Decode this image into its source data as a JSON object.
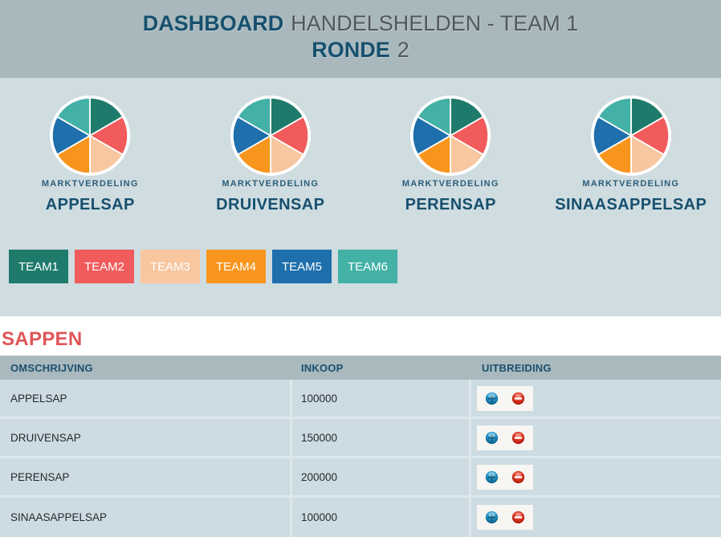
{
  "header": {
    "title_bold": "DASHBOARD",
    "title_rest": "HANDELSHELDEN - TEAM 1",
    "subtitle_bold": "RONDE",
    "subtitle_rest": "2"
  },
  "chart_data": [
    {
      "type": "pie",
      "title": "APPELSAP",
      "label": "MARKTVERDELING",
      "categories": [
        "TEAM1",
        "TEAM2",
        "TEAM3",
        "TEAM4",
        "TEAM5",
        "TEAM6"
      ],
      "values": [
        16.67,
        16.67,
        16.67,
        16.67,
        16.67,
        16.67
      ],
      "colors": [
        "#1E7B6C",
        "#F15B5B",
        "#F8C7A0",
        "#F8951D",
        "#1E6FAC",
        "#43B1A6"
      ],
      "legend": "none",
      "start_angle_deg": -90,
      "direction": "clockwise"
    },
    {
      "type": "pie",
      "title": "DRUIVENSAP",
      "label": "MARKTVERDELING",
      "categories": [
        "TEAM1",
        "TEAM2",
        "TEAM3",
        "TEAM4",
        "TEAM5",
        "TEAM6"
      ],
      "values": [
        16.67,
        16.67,
        16.67,
        16.67,
        16.67,
        16.67
      ],
      "colors": [
        "#1E7B6C",
        "#F15B5B",
        "#F8C7A0",
        "#F8951D",
        "#1E6FAC",
        "#43B1A6"
      ],
      "legend": "none",
      "start_angle_deg": -90,
      "direction": "clockwise"
    },
    {
      "type": "pie",
      "title": "PERENSAP",
      "label": "MARKTVERDELING",
      "categories": [
        "TEAM1",
        "TEAM2",
        "TEAM3",
        "TEAM4",
        "TEAM5",
        "TEAM6"
      ],
      "values": [
        16.67,
        16.67,
        16.67,
        16.67,
        16.67,
        16.67
      ],
      "colors": [
        "#1E7B6C",
        "#F15B5B",
        "#F8C7A0",
        "#F8951D",
        "#1E6FAC",
        "#43B1A6"
      ],
      "legend": "none",
      "start_angle_deg": -90,
      "direction": "clockwise"
    },
    {
      "type": "pie",
      "title": "SINAASAPPELSAP",
      "label": "MARKTVERDELING",
      "categories": [
        "TEAM1",
        "TEAM2",
        "TEAM3",
        "TEAM4",
        "TEAM5",
        "TEAM6"
      ],
      "values": [
        16.67,
        16.67,
        16.67,
        16.67,
        16.67,
        16.67
      ],
      "colors": [
        "#1E7B6C",
        "#F15B5B",
        "#F8C7A0",
        "#F8951D",
        "#1E6FAC",
        "#43B1A6"
      ],
      "legend": "none",
      "start_angle_deg": -90,
      "direction": "clockwise"
    }
  ],
  "teams": [
    {
      "label": "TEAM1",
      "color": "#1E7B6C"
    },
    {
      "label": "TEAM2",
      "color": "#F15B5B"
    },
    {
      "label": "TEAM3",
      "color": "#F8C7A0"
    },
    {
      "label": "TEAM4",
      "color": "#F8951D"
    },
    {
      "label": "TEAM5",
      "color": "#1E6FAC"
    },
    {
      "label": "TEAM6",
      "color": "#43B1A6"
    }
  ],
  "sappen": {
    "title": "SAPPEN",
    "columns": [
      "OMSCHRIJVING",
      "INKOOP",
      "UITBREIDING"
    ],
    "rows": [
      {
        "omschrijving": "APPELSAP",
        "inkoop": "100000"
      },
      {
        "omschrijving": "DRUIVENSAP",
        "inkoop": "150000"
      },
      {
        "omschrijving": "PERENSAP",
        "inkoop": "200000"
      },
      {
        "omschrijving": "SINAASAPPELSAP",
        "inkoop": "100000"
      }
    ],
    "action_icons": {
      "increase": "plus-sphere-icon",
      "decrease": "minus-sphere-icon"
    }
  },
  "colors": {
    "header_bg": "#A8B8BD",
    "charts_bg": "#CFDCE0",
    "title_accent": "#17506E",
    "title_muted": "#51585D",
    "section_title": "#E05558",
    "table_header_bg": "#A9B9BD",
    "table_header_text": "#1B5070",
    "row_bg": "#CCDCE2",
    "row_divider": "#DDE8EC",
    "row_text": "#24292E"
  }
}
